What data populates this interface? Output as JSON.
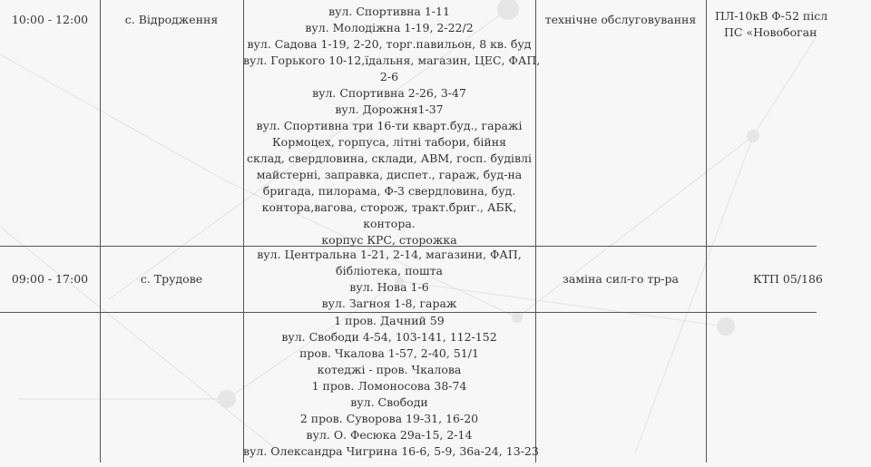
{
  "rows": [
    {
      "time": "10:00 - 12:00",
      "village": "с. Відродження",
      "addresses": [
        "вул. Спортивна 1-11",
        "вул. Молодіжна 1-19, 2-22/2",
        "вул. Садова 1-19, 2-20, торг.павильон, 8 кв. буд",
        "вул. Горького 10-12,їдальня, магазин, ЦЕС, ФАП,",
        "2-6",
        "вул. Спортивна 2-26, 3-47",
        "вул. Дорожня1-37",
        "вул. Спортивна три 16-ти кварт.буд., гаражі",
        "Кормоцех, горпуса, літні табори, бійня",
        "склад, свердловина, склади, АВМ, госп. будівлі",
        "майстерні, заправка, диспет., гараж, буд-на",
        "бригада, пилорама, Ф-3 свердловина, буд.",
        "контора,вагова, сторож, тракт.бриг., АБК,",
        "контора.",
        "корпус КРС, сторожка"
      ],
      "work": "технічне обслуговування",
      "object": [
        "ПЛ-10кВ Ф-52 післ",
        "ПС «Новобоган"
      ]
    },
    {
      "time": "09:00 - 17:00",
      "village": "с. Трудове",
      "addresses": [
        "вул. Центральна 1-21, 2-14, магазини, ФАП,",
        "бібліотека, пошта",
        "вул. Нова 1-6",
        "вул. Загноя 1-8, гараж"
      ],
      "work": "заміна сил-го тр-ра",
      "object": [
        "КТП 05/186"
      ]
    },
    {
      "time": "",
      "village": "",
      "addresses": [
        "1 пров. Дачний 59",
        "вул. Свободи 4-54, 103-141, 112-152",
        "пров. Чкалова 1-57, 2-40, 51/1",
        "котеджі - пров. Чкалова",
        "1 пров. Ломоносова 38-74",
        "вул. Свободи",
        "2 пров. Суворова 19-31, 16-20",
        "вул. О. Фесюка 29а-15, 2-14",
        "вул. Олександра Чигрина 16-6, 5-9, 36а-24, 13-23"
      ],
      "work": "",
      "object": []
    }
  ]
}
